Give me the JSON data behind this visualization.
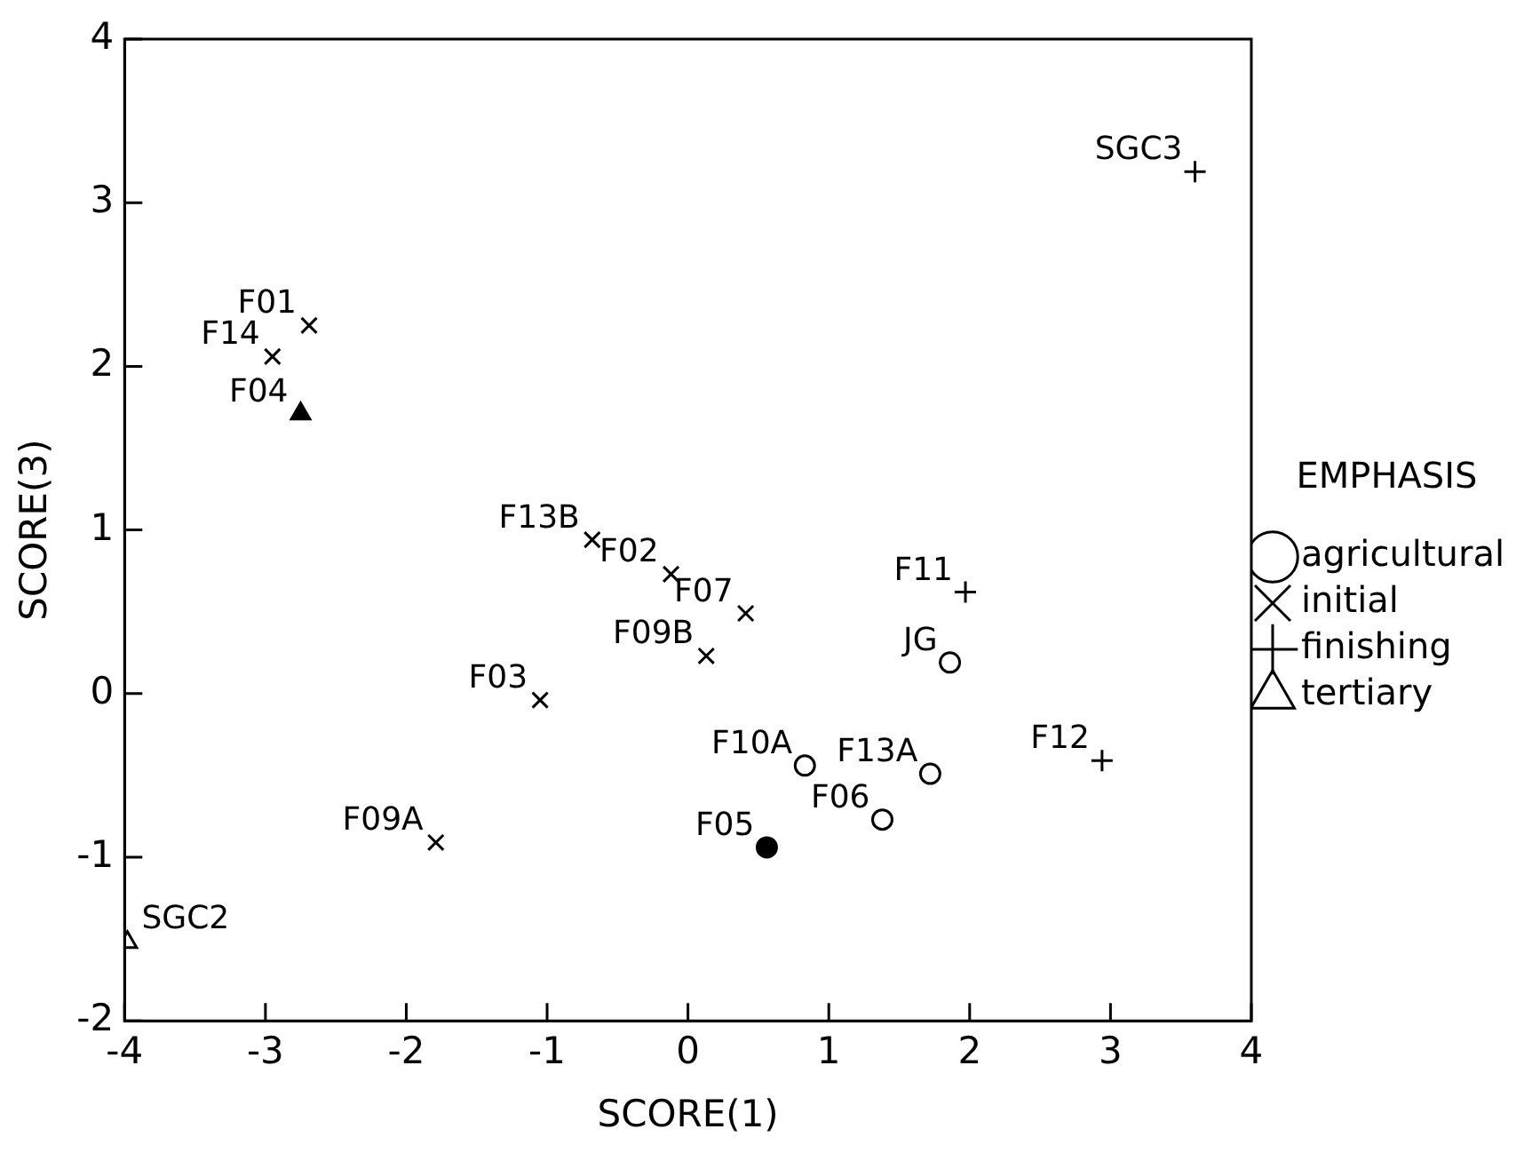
{
  "chart_data": {
    "type": "scatter",
    "xlabel": "SCORE(1)",
    "ylabel": "SCORE(3)",
    "legend_title": "EMPHASIS",
    "legend": "right",
    "grid": false,
    "xlim": [
      -4,
      4
    ],
    "xticks": [
      -4,
      -3,
      -2,
      -1,
      0,
      1,
      2,
      3,
      4
    ],
    "ylim": [
      -2,
      4
    ],
    "yticks": [
      -2,
      -1,
      0,
      1,
      2,
      3,
      4
    ],
    "series": [
      {
        "name": "agricultural",
        "color": "#000000",
        "marker": "circle",
        "x": [
          1.86,
          0.83,
          1.72,
          1.38
        ],
        "values": [
          0.19,
          -0.44,
          -0.49,
          -0.77
        ]
      },
      {
        "name": "initial",
        "color": "#000000",
        "marker": "cross",
        "x": [
          -2.69,
          -2.95,
          -0.68,
          -0.12,
          0.41,
          0.13,
          -1.05,
          -1.79
        ],
        "values": [
          2.25,
          2.06,
          0.94,
          0.73,
          0.49,
          0.23,
          -0.04,
          -0.91
        ]
      },
      {
        "name": "finishing",
        "color": "#000000",
        "marker": "plus",
        "x": [
          3.6,
          1.97,
          2.94
        ],
        "values": [
          3.19,
          0.62,
          -0.41
        ]
      },
      {
        "name": "tertiary",
        "color": "#000000",
        "marker": "triangle",
        "x": [
          -3.98
        ],
        "values": [
          -1.52
        ]
      },
      {
        "color": "#000000",
        "marker": "circle",
        "x": [
          0.56
        ],
        "values": [
          -0.94
        ]
      },
      {
        "color": "#000000",
        "marker": "triangle",
        "x": [
          -2.75
        ],
        "values": [
          1.71
        ]
      }
    ],
    "annotations": [
      {
        "text": "JG",
        "x": 1.86,
        "y": 0.19
      },
      {
        "text": "F10A",
        "x": 0.83,
        "y": -0.44
      },
      {
        "text": "F13A",
        "x": 1.72,
        "y": -0.49
      },
      {
        "text": "F06",
        "x": 1.38,
        "y": -0.77
      },
      {
        "text": "F01",
        "x": -2.69,
        "y": 2.25
      },
      {
        "text": "F14",
        "x": -2.95,
        "y": 2.06
      },
      {
        "text": "F13B",
        "x": -0.68,
        "y": 0.94
      },
      {
        "text": "F02",
        "x": -0.12,
        "y": 0.73
      },
      {
        "text": "F07",
        "x": 0.41,
        "y": 0.49
      },
      {
        "text": "F09B",
        "x": 0.13,
        "y": 0.23
      },
      {
        "text": "F03",
        "x": -1.05,
        "y": -0.04
      },
      {
        "text": "F09A",
        "x": -1.79,
        "y": -0.91
      },
      {
        "text": "SGC3",
        "x": 3.6,
        "y": 3.19
      },
      {
        "text": "F11",
        "x": 1.97,
        "y": 0.62
      },
      {
        "text": "F12",
        "x": 2.94,
        "y": -0.41
      },
      {
        "text": "SGC2",
        "x": -3.98,
        "y": -1.52
      },
      {
        "text": "F05",
        "x": 0.56,
        "y": -0.94
      },
      {
        "text": "F04",
        "x": -2.75,
        "y": 1.71
      }
    ]
  }
}
